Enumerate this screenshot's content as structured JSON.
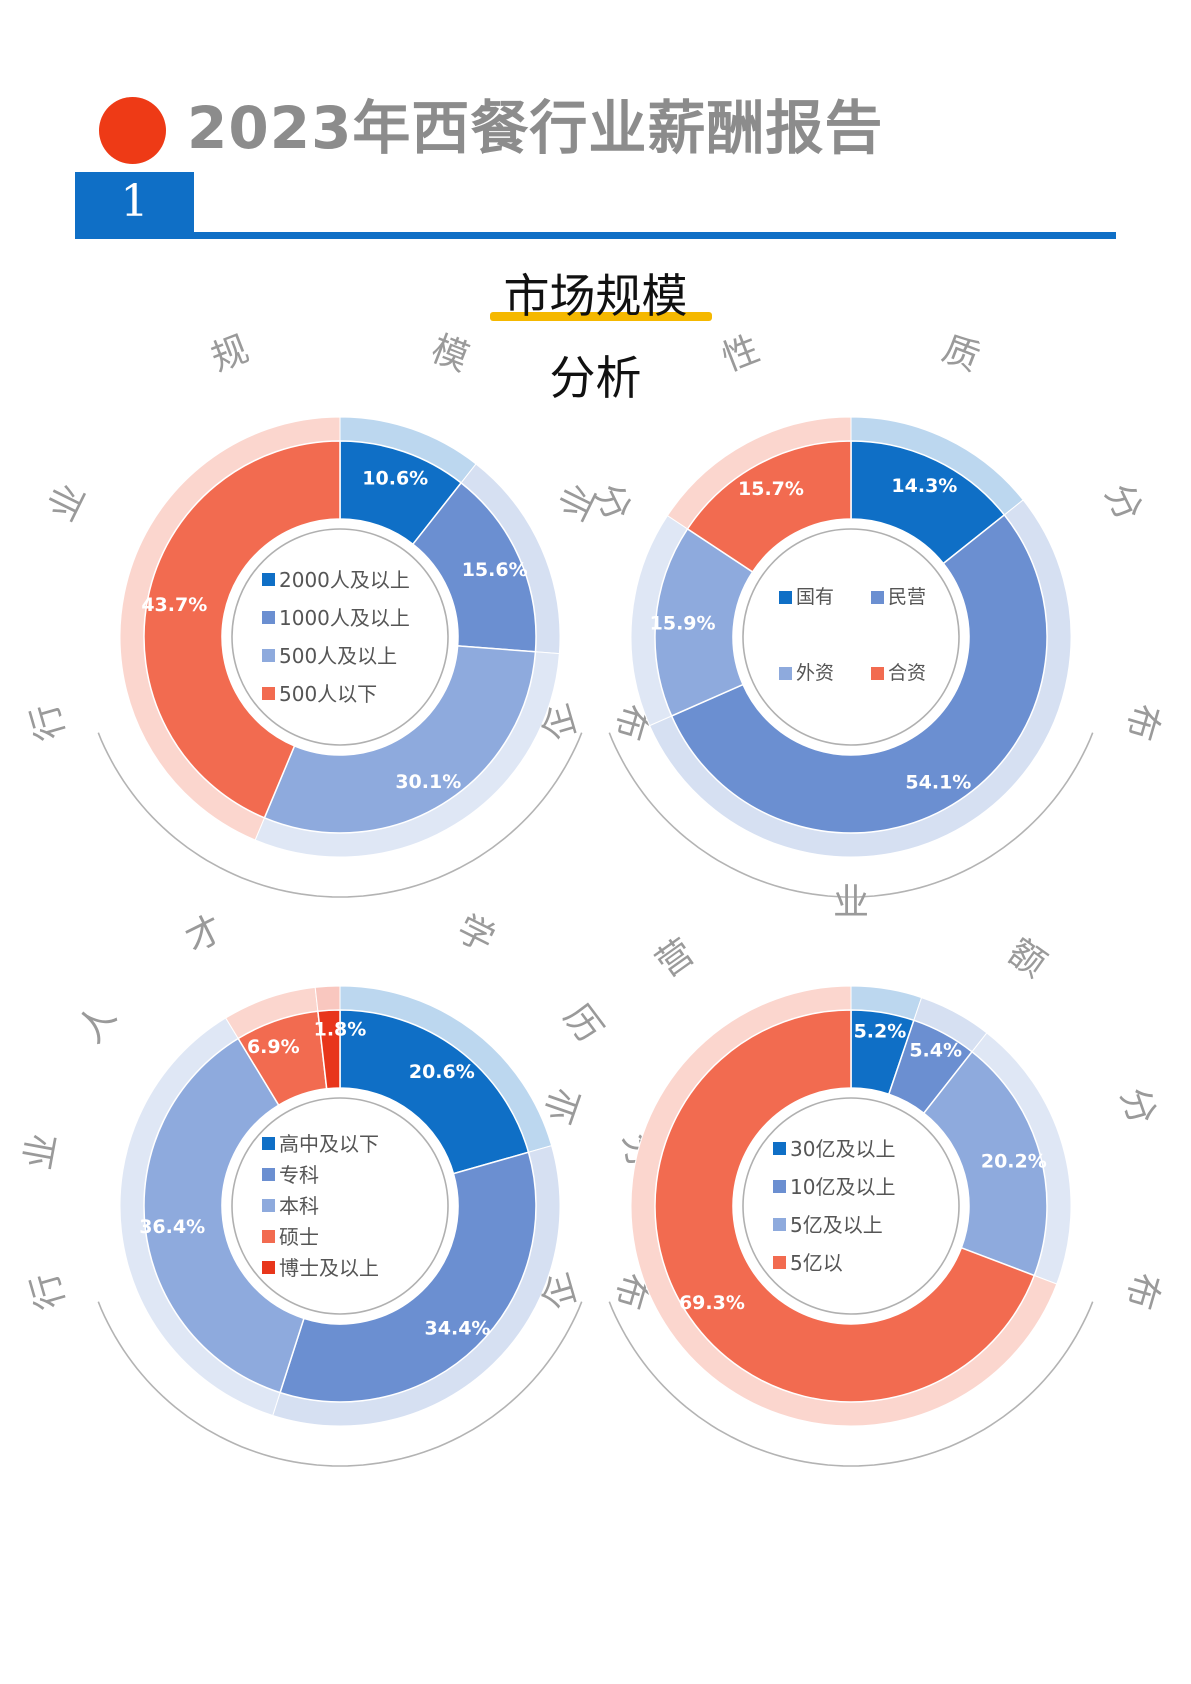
{
  "header": {
    "title": "2023年西餐行业薪酬报告",
    "section_number": "1",
    "subtitle_line1": "市场规模",
    "subtitle_line2": "分析",
    "accent_color": "#ee3a16",
    "brand_blue": "#0f6fc6",
    "underline_color": "#f5b800"
  },
  "chart_data": [
    {
      "type": "pie",
      "title": "行业规模分布",
      "categories": [
        "2000人及以上",
        "1000人及以上",
        "500人及以上",
        "500人以下"
      ],
      "values": [
        10.6,
        15.6,
        30.1,
        43.7
      ],
      "labels": [
        "10.6%",
        "15.6%",
        "30.1%",
        "43.7%"
      ],
      "colors": [
        "#0f6fc6",
        "#6b8fd1",
        "#8eaadd",
        "#f26b50"
      ],
      "legend_layout": "list"
    },
    {
      "type": "pie",
      "title": "企业性质分布",
      "categories": [
        "国有",
        "民营",
        "外资",
        "合资"
      ],
      "values": [
        14.3,
        54.1,
        15.9,
        15.7
      ],
      "labels": [
        "14.3%",
        "54.1%",
        "15.9%",
        "15.7%"
      ],
      "colors": [
        "#0f6fc6",
        "#6b8fd1",
        "#8eaadd",
        "#f26b50"
      ],
      "legend_layout": "grid"
    },
    {
      "type": "pie",
      "title": "行业人才 学历分布",
      "categories": [
        "高中及以下",
        "专科",
        "本科",
        "硕士",
        "博士及以上"
      ],
      "values": [
        20.6,
        34.4,
        36.4,
        6.9,
        1.8
      ],
      "labels": [
        "20.6%",
        "34.4%",
        "36.4%",
        "6.9%",
        "1.8%"
      ],
      "colors": [
        "#0f6fc6",
        "#6b8fd1",
        "#8eaadd",
        "#f26b50",
        "#e8361b"
      ],
      "legend_layout": "list"
    },
    {
      "type": "pie",
      "title": "企业营业额分布",
      "categories": [
        "30亿及以上",
        "10亿及以上",
        "5亿及以上",
        "5亿以"
      ],
      "values": [
        5.2,
        5.4,
        20.2,
        69.3
      ],
      "labels": [
        "5.2%",
        "5.4%",
        "20.2%",
        "69.3%"
      ],
      "colors": [
        "#0f6fc6",
        "#6b8fd1",
        "#8eaadd",
        "#f26b50"
      ],
      "legend_layout": "list"
    }
  ]
}
